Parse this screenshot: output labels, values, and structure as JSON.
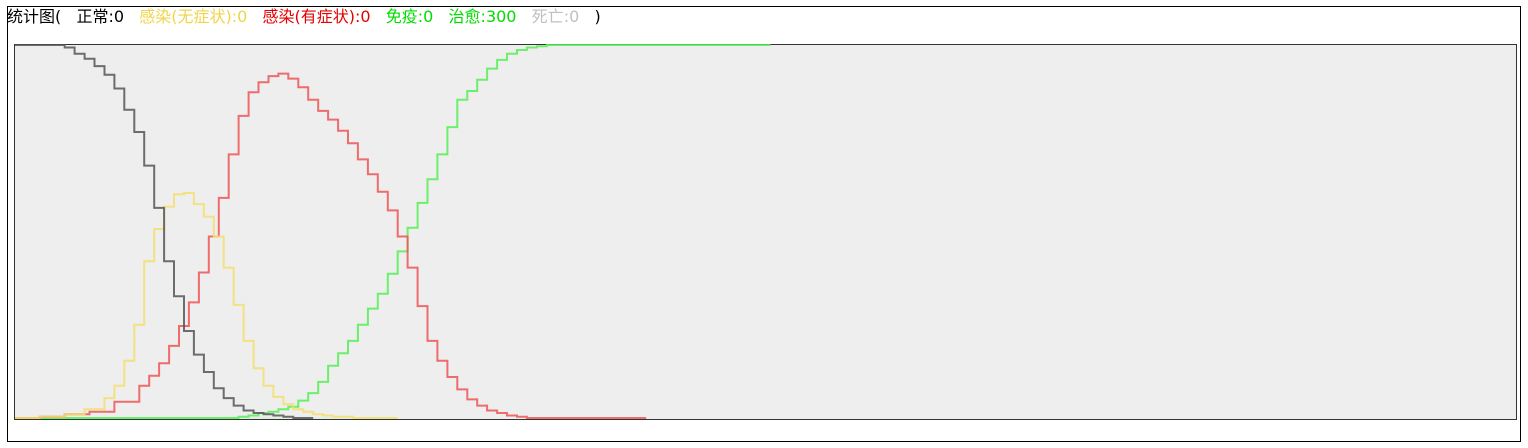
{
  "title": {
    "prefix": "统计图(",
    "suffix": ")"
  },
  "legend": [
    {
      "key": "normal",
      "label": "正常",
      "value": "0",
      "color": "#000000"
    },
    {
      "key": "asymptomatic",
      "label": "感染(无症状)",
      "value": "0",
      "color": "#f2d44a"
    },
    {
      "key": "symptomatic",
      "label": "感染(有症状)",
      "value": "0",
      "color": "#e60000"
    },
    {
      "key": "immune",
      "label": "免疫",
      "value": "0",
      "color": "#00dd00"
    },
    {
      "key": "recovered",
      "label": "治愈",
      "value": "300",
      "color": "#00dd00"
    },
    {
      "key": "dead",
      "label": "死亡",
      "value": "0",
      "color": "#c0c0c0"
    }
  ],
  "chart_data": {
    "type": "line",
    "step": true,
    "title": "统计图",
    "xlabel": "",
    "ylabel": "",
    "xlim": [
      0,
      150
    ],
    "ylim": [
      0,
      300
    ],
    "grid": false,
    "x": [
      0,
      5,
      10,
      15,
      20,
      25,
      30,
      35,
      40,
      45,
      50,
      55,
      60,
      65,
      70,
      75
    ],
    "series": [
      {
        "name": "正常",
        "color": "#555555",
        "x": [
          0,
          5,
          10,
          12,
          14,
          16,
          18,
          20,
          22,
          24,
          26,
          28,
          30,
          32,
          34,
          36,
          38,
          40,
          42,
          44,
          46,
          48,
          50,
          52,
          54,
          56,
          58
        ],
        "values": [
          300,
          300,
          298,
          293,
          289,
          283,
          276,
          265,
          248,
          230,
          203,
          169,
          126,
          98,
          70,
          51,
          37,
          24,
          16,
          10,
          6,
          4,
          3,
          2,
          1,
          0,
          0
        ]
      },
      {
        "name": "感染(无症状)",
        "color": "#f2df6e",
        "x": [
          0,
          5,
          10,
          14,
          18,
          20,
          22,
          24,
          26,
          28,
          30,
          32,
          34,
          36,
          38,
          40,
          42,
          44,
          46,
          48,
          50,
          52,
          54,
          56,
          58,
          60,
          62,
          64,
          66,
          68,
          70,
          75
        ],
        "values": [
          0,
          1,
          3,
          7,
          16,
          26,
          46,
          75,
          126,
          152,
          170,
          180,
          181,
          172,
          162,
          146,
          121,
          91,
          62,
          40,
          26,
          17,
          11,
          7,
          5,
          3,
          2,
          1,
          1,
          0,
          0,
          0
        ]
      },
      {
        "name": "感染(有症状)",
        "color": "#ee5555",
        "x": [
          0,
          5,
          10,
          15,
          20,
          25,
          27,
          29,
          31,
          33,
          35,
          37,
          39,
          41,
          43,
          45,
          47,
          49,
          51,
          53,
          55,
          57,
          59,
          61,
          63,
          65,
          67,
          69,
          71,
          73,
          75,
          77,
          79,
          81,
          83,
          85,
          87,
          89,
          91,
          93,
          95,
          97,
          99,
          101,
          103,
          105,
          107,
          109,
          111,
          113,
          115,
          117,
          119,
          121,
          123,
          125
        ],
        "values": [
          0,
          1,
          3,
          5,
          13,
          26,
          34,
          44,
          58,
          74,
          93,
          117,
          146,
          177,
          212,
          243,
          262,
          270,
          275,
          277,
          273,
          266,
          256,
          247,
          240,
          231,
          221,
          208,
          196,
          182,
          167,
          146,
          121,
          90,
          62,
          46,
          33,
          23,
          15,
          10,
          6,
          4,
          2,
          1,
          0,
          0,
          0,
          0,
          0,
          0,
          0,
          0,
          0,
          0,
          0,
          0
        ]
      },
      {
        "name": "免疫",
        "color": "#ddeedd",
        "x": [
          0,
          20,
          40,
          60,
          75
        ],
        "values": [
          0,
          0,
          0,
          0,
          0
        ]
      },
      {
        "name": "治愈",
        "color": "#55ee55",
        "x": [
          0,
          20,
          40,
          45,
          47,
          49,
          51,
          53,
          55,
          57,
          59,
          61,
          63,
          65,
          67,
          69,
          71,
          73,
          75,
          77,
          79,
          81,
          83,
          85,
          87,
          89,
          91,
          93,
          95,
          97,
          99,
          101,
          103,
          105,
          107,
          109,
          111,
          113,
          115,
          117,
          119,
          121,
          123,
          125,
          127,
          130,
          135,
          140,
          145,
          150
        ],
        "values": [
          0,
          0,
          0,
          1,
          2,
          4,
          5,
          7,
          9,
          14,
          20,
          29,
          42,
          52,
          62,
          75,
          88,
          100,
          116,
          134,
          153,
          173,
          192,
          212,
          234,
          256,
          263,
          272,
          281,
          288,
          293,
          296,
          298,
          299,
          300,
          300,
          300,
          300,
          300,
          300,
          300,
          300,
          300,
          300,
          300,
          300,
          300,
          300,
          300,
          300
        ]
      }
    ]
  }
}
